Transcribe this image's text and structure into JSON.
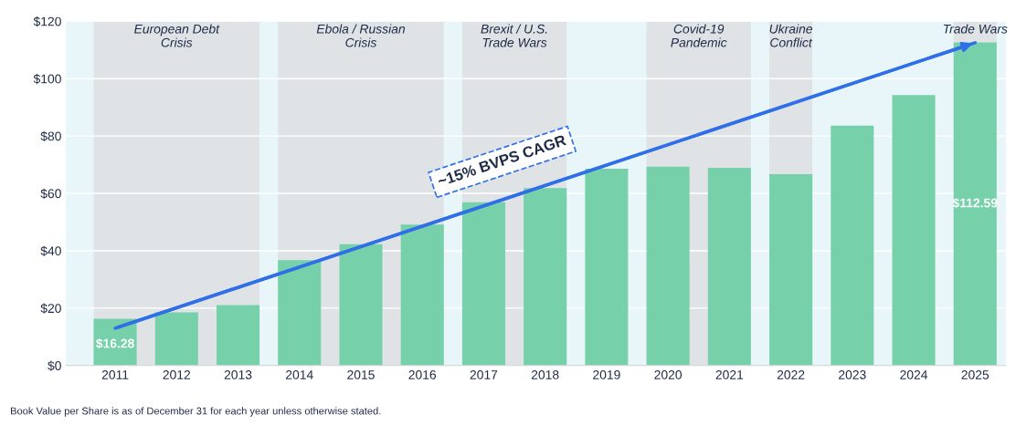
{
  "chart_data": {
    "type": "bar",
    "categories": [
      "2011",
      "2012",
      "2013",
      "2014",
      "2015",
      "2016",
      "2017",
      "2018",
      "2019",
      "2020",
      "2021",
      "2022",
      "2023",
      "2024",
      "2025"
    ],
    "series": [
      {
        "color": "#76d1aa",
        "values": [
          16.28,
          18.5,
          21.1,
          36.7,
          42.3,
          49.1,
          56.9,
          61.8,
          68.6,
          69.3,
          68.9,
          66.7,
          83.6,
          94.3,
          112.59
        ],
        "value_labels": [
          "$16.28",
          null,
          null,
          null,
          null,
          null,
          null,
          null,
          null,
          null,
          null,
          null,
          null,
          null,
          "$112.59"
        ]
      },
      {
        "type": "line",
        "color": "#2f6fe8",
        "values": [
          13,
          null,
          null,
          null,
          null,
          null,
          null,
          null,
          null,
          null,
          null,
          null,
          null,
          null,
          112.5
        ]
      }
    ],
    "ylim": [
      0,
      120
    ],
    "yticks": [
      {
        "value": 0,
        "label": "$0"
      },
      {
        "value": 20,
        "label": "$20"
      },
      {
        "value": 40,
        "label": "$40"
      },
      {
        "value": 60,
        "label": "$60"
      },
      {
        "value": 80,
        "label": "$80"
      },
      {
        "value": 100,
        "label": "$100"
      },
      {
        "value": 120,
        "label": "$120"
      }
    ],
    "grid": "y",
    "bands": [
      {
        "axis": "x",
        "from": "2011",
        "to": "2013",
        "label": "European Debt\nCrisis",
        "color": "#dfe3e6"
      },
      {
        "axis": "x",
        "from": "2014",
        "to": "2016",
        "label": "Ebola / Russian\nCrisis",
        "color": "#dfe3e6"
      },
      {
        "axis": "x",
        "from": "2017",
        "to": "2018",
        "label": "Brexit / U.S.\nTrade Wars",
        "color": "#dfe3e6"
      },
      {
        "axis": "x",
        "from": "2020",
        "to": "2021",
        "label": "Covid-19\nPandemic",
        "color": "#dfe3e6"
      },
      {
        "axis": "x",
        "from": "2022",
        "to": "2022",
        "label": "Ukraine\nConflict",
        "color": "#dfe3e6"
      },
      {
        "axis": "x",
        "from": "2025",
        "to": "2025",
        "label": "Trade Wars",
        "color": "#dfe3e6"
      }
    ],
    "annotations": [
      {
        "text": "~15% BVPS CAGR",
        "x": "2017",
        "y": 57
      },
      "Book Value per Share is as of December 31 for each year unless otherwise stated."
    ]
  }
}
